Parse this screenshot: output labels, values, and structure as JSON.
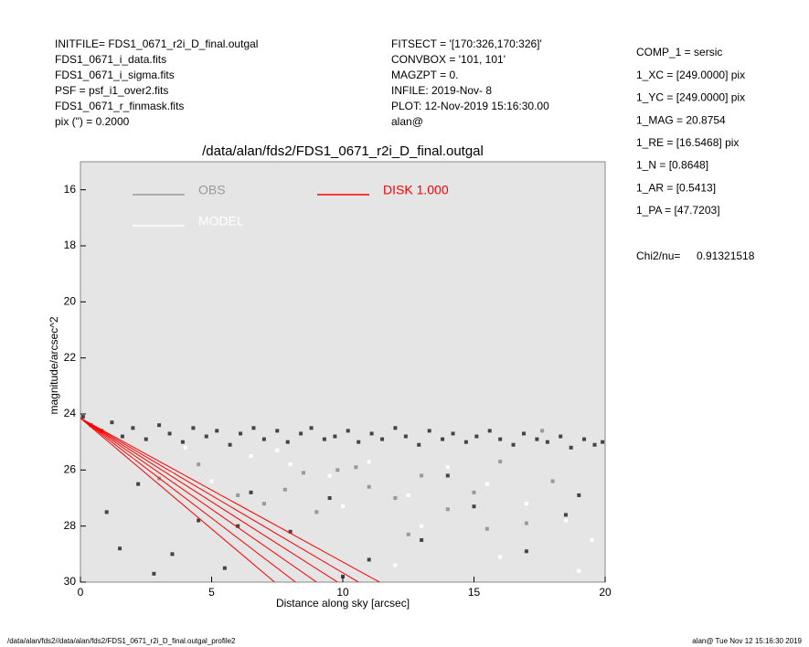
{
  "chart_data": {
    "type": "scatter",
    "title": "/data/alan/fds2/FDS1_0671_r2i_D_final.outgal",
    "header_left": [
      "INITFILE= FDS1_0671_r2i_D_final.outgal",
      "FDS1_0671_i_data.fits",
      "FDS1_0671_i_sigma.fits",
      "PSF    = psf_i1_over2.fits",
      "FDS1_0671_r_finmask.fits",
      "pix (\") =  0.2000"
    ],
    "header_mid": [
      "FITSECT = '[170:326,170:326]'",
      "CONVBOX = '101, 101'",
      "MAGZPT  =              0.",
      "INFILE: 2019-Nov- 8",
      "PLOT: 12-Nov-2019 15:16:30.00",
      "alan@"
    ],
    "params": [
      "COMP_1  = sersic",
      "1_XC    = [249.0000] pix",
      "1_YC    = [249.0000] pix",
      "1_MAG   = 20.8754",
      "1_RE    = [16.5468] pix",
      "1_N     = [0.8648]",
      "1_AR    = [0.5413]",
      "1_PA    = [47.7203]"
    ],
    "chi_label": "Chi2/nu=",
    "chi_value": "0.91321518",
    "footer_left": "/data/alan/fds2//data/alan/fds2/FDS1_0671_r2i_D_final.outgal_profile2",
    "footer_right": "alan@  Tue Nov 12 15:16:30 2019",
    "x_label": "Distance along sky [arcsec]",
    "y_label": "magnitude/arcsec^2",
    "xlim": [
      0,
      20
    ],
    "ylim": [
      15,
      30
    ],
    "y_inverted": true,
    "xticks": [
      0,
      5,
      10,
      15,
      20
    ],
    "yticks": [
      16,
      18,
      20,
      22,
      24,
      26,
      28,
      30
    ],
    "plot_background": "#e5e5e5",
    "legend": [
      {
        "name": "OBS",
        "color": "#999999"
      },
      {
        "name": "DISK  1.000",
        "color": "#ff0000"
      },
      {
        "name": "MODEL",
        "color": "#ffffff"
      }
    ],
    "series": [
      {
        "color": "#444444",
        "x": [
          0.1,
          0.4,
          0.8,
          1.2,
          1.6,
          2.0,
          2.5,
          3.0,
          3.4,
          3.9,
          4.3,
          4.8,
          5.2,
          5.7,
          6.1,
          6.6,
          7.0,
          7.5,
          7.9,
          8.4,
          8.8,
          9.3,
          9.7,
          10.2,
          10.6,
          11.1,
          11.5,
          12.0,
          12.4,
          12.9,
          13.3,
          13.8,
          14.2,
          14.7,
          15.1,
          15.6,
          16.0,
          16.5,
          16.9,
          17.4,
          17.8,
          18.3,
          18.7,
          19.2,
          19.6,
          19.9,
          1.0,
          1.5,
          2.2,
          3.5,
          4.5,
          5.5,
          6.5,
          8.0,
          9.5,
          11.0,
          13.0,
          15.0,
          17.0,
          19.0,
          2.8,
          6.0,
          10.0,
          14.0,
          18.5
        ],
        "values": [
          24.1,
          24.4,
          24.6,
          24.3,
          24.8,
          24.5,
          24.9,
          24.4,
          24.7,
          25.0,
          24.5,
          24.8,
          24.6,
          25.1,
          24.7,
          24.5,
          24.9,
          24.6,
          25.0,
          24.7,
          24.5,
          24.9,
          24.8,
          24.6,
          25.0,
          24.7,
          24.9,
          24.5,
          24.8,
          25.1,
          24.6,
          24.9,
          24.7,
          25.0,
          24.8,
          24.6,
          24.9,
          25.1,
          24.7,
          24.9,
          25.0,
          24.8,
          25.2,
          24.9,
          25.1,
          25.0,
          27.5,
          28.8,
          26.5,
          29.0,
          27.8,
          29.5,
          26.8,
          28.2,
          27.0,
          29.2,
          28.5,
          27.3,
          28.9,
          26.9,
          29.7,
          28.0,
          29.8,
          26.2,
          27.6
        ]
      },
      {
        "color": "#999999",
        "x": [
          3,
          4.5,
          6,
          7,
          8.5,
          9,
          10.5,
          11,
          12,
          13,
          14,
          15,
          16,
          17,
          18,
          12.5,
          9.8,
          7.8,
          15.5,
          17.6
        ],
        "values": [
          26.3,
          25.8,
          26.9,
          27.2,
          26.1,
          27.5,
          25.9,
          26.6,
          27.0,
          26.2,
          27.4,
          26.8,
          25.7,
          27.9,
          26.4,
          28.3,
          26.0,
          26.7,
          28.1,
          24.6
        ]
      },
      {
        "color": "#ffffff",
        "x": [
          2,
          3.5,
          5,
          6.5,
          8,
          9.5,
          11,
          12.5,
          14,
          15.5,
          17,
          18.5,
          19.5,
          10,
          13,
          16,
          4,
          7.5,
          19,
          12
        ],
        "values": [
          25.6,
          26.1,
          26.4,
          25.5,
          25.8,
          26.2,
          25.7,
          26.9,
          25.9,
          26.5,
          27.2,
          27.8,
          28.5,
          27.3,
          28.0,
          29.1,
          25.2,
          25.3,
          29.6,
          29.4
        ]
      }
    ],
    "model_lines": [
      {
        "color": "#ff0000",
        "x": [
          0,
          7.4
        ],
        "values": [
          24.15,
          30
        ]
      },
      {
        "color": "#ff0000",
        "x": [
          0,
          8.2
        ],
        "values": [
          24.15,
          30
        ]
      },
      {
        "color": "#ff0000",
        "x": [
          0,
          9.0
        ],
        "values": [
          24.15,
          30
        ]
      },
      {
        "color": "#ff0000",
        "x": [
          0,
          9.8
        ],
        "values": [
          24.15,
          30
        ]
      },
      {
        "color": "#ff0000",
        "x": [
          0,
          10.6
        ],
        "values": [
          24.15,
          30
        ]
      },
      {
        "color": "#ff0000",
        "x": [
          0,
          11.4
        ],
        "values": [
          24.15,
          30
        ]
      }
    ]
  }
}
